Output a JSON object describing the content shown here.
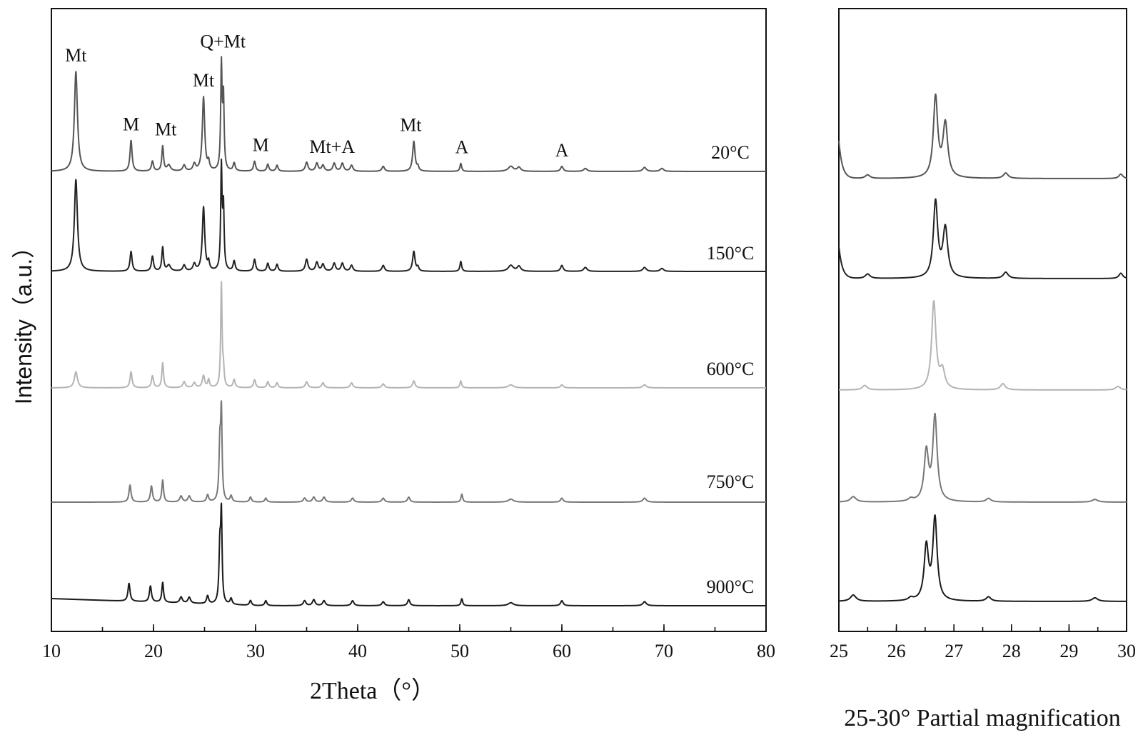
{
  "chart_data": [
    {
      "type": "line",
      "xlabel": "2Theta（°）",
      "ylabel": "Intensity（a.u.）",
      "xlim": [
        10,
        80
      ],
      "xticks": [
        10,
        20,
        30,
        40,
        50,
        60,
        70,
        80
      ],
      "x_minor_tick_step": 5,
      "y_ticks": false,
      "grid": false,
      "series": [
        {
          "label": "20°C",
          "color": "#555555",
          "peaks": [
            {
              "x": 12.4,
              "h": 1.0,
              "w": 0.18
            },
            {
              "x": 17.8,
              "h": 0.31,
              "w": 0.12
            },
            {
              "x": 19.9,
              "h": 0.1,
              "w": 0.12
            },
            {
              "x": 20.9,
              "h": 0.25,
              "w": 0.1
            },
            {
              "x": 21.5,
              "h": 0.06,
              "w": 0.2
            },
            {
              "x": 23.0,
              "h": 0.06,
              "w": 0.15
            },
            {
              "x": 24.0,
              "h": 0.07,
              "w": 0.15
            },
            {
              "x": 24.9,
              "h": 0.74,
              "w": 0.14
            },
            {
              "x": 25.4,
              "h": 0.08,
              "w": 0.1
            },
            {
              "x": 26.65,
              "h": 1.04,
              "w": 0.08
            },
            {
              "x": 26.85,
              "h": 0.72,
              "w": 0.08
            },
            {
              "x": 27.9,
              "h": 0.08,
              "w": 0.12
            },
            {
              "x": 29.9,
              "h": 0.1,
              "w": 0.12
            },
            {
              "x": 31.2,
              "h": 0.07,
              "w": 0.12
            },
            {
              "x": 32.1,
              "h": 0.06,
              "w": 0.12
            },
            {
              "x": 35.0,
              "h": 0.09,
              "w": 0.15
            },
            {
              "x": 36.0,
              "h": 0.08,
              "w": 0.15
            },
            {
              "x": 36.6,
              "h": 0.06,
              "w": 0.15
            },
            {
              "x": 37.7,
              "h": 0.08,
              "w": 0.15
            },
            {
              "x": 38.5,
              "h": 0.08,
              "w": 0.15
            },
            {
              "x": 39.4,
              "h": 0.06,
              "w": 0.15
            },
            {
              "x": 42.5,
              "h": 0.05,
              "w": 0.15
            },
            {
              "x": 45.5,
              "h": 0.3,
              "w": 0.14
            },
            {
              "x": 45.9,
              "h": 0.04,
              "w": 0.1
            },
            {
              "x": 50.1,
              "h": 0.08,
              "w": 0.1
            },
            {
              "x": 55.0,
              "h": 0.05,
              "w": 0.3
            },
            {
              "x": 55.8,
              "h": 0.04,
              "w": 0.2
            },
            {
              "x": 60.0,
              "h": 0.05,
              "w": 0.15
            },
            {
              "x": 62.3,
              "h": 0.03,
              "w": 0.2
            },
            {
              "x": 68.1,
              "h": 0.04,
              "w": 0.2
            },
            {
              "x": 69.8,
              "h": 0.03,
              "w": 0.2
            }
          ]
        },
        {
          "label": "150°C",
          "color": "#222222",
          "peaks": [
            {
              "x": 12.4,
              "h": 0.92,
              "w": 0.18
            },
            {
              "x": 17.8,
              "h": 0.2,
              "w": 0.12
            },
            {
              "x": 19.9,
              "h": 0.15,
              "w": 0.12
            },
            {
              "x": 20.9,
              "h": 0.24,
              "w": 0.1
            },
            {
              "x": 21.5,
              "h": 0.06,
              "w": 0.2
            },
            {
              "x": 23.0,
              "h": 0.06,
              "w": 0.15
            },
            {
              "x": 24.0,
              "h": 0.07,
              "w": 0.15
            },
            {
              "x": 24.9,
              "h": 0.64,
              "w": 0.14
            },
            {
              "x": 25.4,
              "h": 0.08,
              "w": 0.1
            },
            {
              "x": 26.65,
              "h": 1.03,
              "w": 0.08
            },
            {
              "x": 26.85,
              "h": 0.62,
              "w": 0.08
            },
            {
              "x": 27.9,
              "h": 0.1,
              "w": 0.12
            },
            {
              "x": 29.9,
              "h": 0.12,
              "w": 0.12
            },
            {
              "x": 31.2,
              "h": 0.08,
              "w": 0.12
            },
            {
              "x": 32.1,
              "h": 0.07,
              "w": 0.12
            },
            {
              "x": 35.0,
              "h": 0.12,
              "w": 0.15
            },
            {
              "x": 36.0,
              "h": 0.09,
              "w": 0.15
            },
            {
              "x": 36.6,
              "h": 0.07,
              "w": 0.15
            },
            {
              "x": 37.7,
              "h": 0.08,
              "w": 0.15
            },
            {
              "x": 38.5,
              "h": 0.08,
              "w": 0.15
            },
            {
              "x": 39.4,
              "h": 0.06,
              "w": 0.15
            },
            {
              "x": 42.5,
              "h": 0.06,
              "w": 0.15
            },
            {
              "x": 45.5,
              "h": 0.2,
              "w": 0.14
            },
            {
              "x": 45.9,
              "h": 0.04,
              "w": 0.1
            },
            {
              "x": 50.1,
              "h": 0.1,
              "w": 0.1
            },
            {
              "x": 55.0,
              "h": 0.06,
              "w": 0.3
            },
            {
              "x": 55.8,
              "h": 0.05,
              "w": 0.2
            },
            {
              "x": 60.0,
              "h": 0.06,
              "w": 0.15
            },
            {
              "x": 62.3,
              "h": 0.04,
              "w": 0.2
            },
            {
              "x": 68.1,
              "h": 0.04,
              "w": 0.2
            },
            {
              "x": 69.8,
              "h": 0.03,
              "w": 0.2
            }
          ]
        },
        {
          "label": "600°C",
          "color": "#b4b4b4",
          "peaks": [
            {
              "x": 12.4,
              "h": 0.16,
              "w": 0.18
            },
            {
              "x": 17.8,
              "h": 0.16,
              "w": 0.12
            },
            {
              "x": 19.9,
              "h": 0.12,
              "w": 0.12
            },
            {
              "x": 20.9,
              "h": 0.25,
              "w": 0.1
            },
            {
              "x": 23.0,
              "h": 0.06,
              "w": 0.15
            },
            {
              "x": 24.0,
              "h": 0.05,
              "w": 0.15
            },
            {
              "x": 24.9,
              "h": 0.12,
              "w": 0.14
            },
            {
              "x": 25.4,
              "h": 0.08,
              "w": 0.1
            },
            {
              "x": 26.65,
              "h": 1.04,
              "w": 0.08
            },
            {
              "x": 26.85,
              "h": 0.16,
              "w": 0.08
            },
            {
              "x": 27.9,
              "h": 0.08,
              "w": 0.12
            },
            {
              "x": 29.9,
              "h": 0.08,
              "w": 0.12
            },
            {
              "x": 31.2,
              "h": 0.06,
              "w": 0.12
            },
            {
              "x": 32.1,
              "h": 0.05,
              "w": 0.12
            },
            {
              "x": 35.0,
              "h": 0.06,
              "w": 0.15
            },
            {
              "x": 36.6,
              "h": 0.05,
              "w": 0.15
            },
            {
              "x": 39.4,
              "h": 0.05,
              "w": 0.15
            },
            {
              "x": 42.5,
              "h": 0.04,
              "w": 0.15
            },
            {
              "x": 45.5,
              "h": 0.07,
              "w": 0.14
            },
            {
              "x": 50.1,
              "h": 0.07,
              "w": 0.1
            },
            {
              "x": 55.0,
              "h": 0.03,
              "w": 0.3
            },
            {
              "x": 60.0,
              "h": 0.03,
              "w": 0.15
            },
            {
              "x": 68.1,
              "h": 0.03,
              "w": 0.2
            }
          ]
        },
        {
          "label": "750°C",
          "color": "#777777",
          "peaks": [
            {
              "x": 17.7,
              "h": 0.17,
              "w": 0.12
            },
            {
              "x": 19.8,
              "h": 0.16,
              "w": 0.12
            },
            {
              "x": 20.9,
              "h": 0.22,
              "w": 0.1
            },
            {
              "x": 22.7,
              "h": 0.06,
              "w": 0.15
            },
            {
              "x": 23.5,
              "h": 0.06,
              "w": 0.15
            },
            {
              "x": 25.3,
              "h": 0.07,
              "w": 0.12
            },
            {
              "x": 26.5,
              "h": 0.55,
              "w": 0.1
            },
            {
              "x": 26.65,
              "h": 0.85,
              "w": 0.08
            },
            {
              "x": 27.6,
              "h": 0.06,
              "w": 0.12
            },
            {
              "x": 29.5,
              "h": 0.05,
              "w": 0.12
            },
            {
              "x": 31.0,
              "h": 0.04,
              "w": 0.12
            },
            {
              "x": 34.8,
              "h": 0.04,
              "w": 0.15
            },
            {
              "x": 35.7,
              "h": 0.05,
              "w": 0.15
            },
            {
              "x": 36.7,
              "h": 0.05,
              "w": 0.15
            },
            {
              "x": 39.5,
              "h": 0.04,
              "w": 0.15
            },
            {
              "x": 42.5,
              "h": 0.04,
              "w": 0.15
            },
            {
              "x": 45.0,
              "h": 0.05,
              "w": 0.14
            },
            {
              "x": 50.2,
              "h": 0.08,
              "w": 0.1
            },
            {
              "x": 55.0,
              "h": 0.03,
              "w": 0.3
            },
            {
              "x": 60.0,
              "h": 0.04,
              "w": 0.15
            },
            {
              "x": 68.1,
              "h": 0.04,
              "w": 0.2
            }
          ]
        },
        {
          "label": "900°C",
          "color": "#1a1a1a",
          "peaks": [
            {
              "x": 17.6,
              "h": 0.18,
              "w": 0.12
            },
            {
              "x": 19.7,
              "h": 0.16,
              "w": 0.12
            },
            {
              "x": 20.9,
              "h": 0.2,
              "w": 0.1
            },
            {
              "x": 22.7,
              "h": 0.06,
              "w": 0.15
            },
            {
              "x": 23.5,
              "h": 0.06,
              "w": 0.15
            },
            {
              "x": 25.3,
              "h": 0.08,
              "w": 0.12
            },
            {
              "x": 26.5,
              "h": 0.55,
              "w": 0.1
            },
            {
              "x": 26.65,
              "h": 0.85,
              "w": 0.08
            },
            {
              "x": 27.6,
              "h": 0.06,
              "w": 0.12
            },
            {
              "x": 29.5,
              "h": 0.05,
              "w": 0.12
            },
            {
              "x": 31.0,
              "h": 0.05,
              "w": 0.12
            },
            {
              "x": 34.8,
              "h": 0.05,
              "w": 0.15
            },
            {
              "x": 35.7,
              "h": 0.06,
              "w": 0.15
            },
            {
              "x": 36.7,
              "h": 0.05,
              "w": 0.15
            },
            {
              "x": 39.5,
              "h": 0.05,
              "w": 0.15
            },
            {
              "x": 42.5,
              "h": 0.04,
              "w": 0.15
            },
            {
              "x": 45.0,
              "h": 0.06,
              "w": 0.14
            },
            {
              "x": 50.2,
              "h": 0.07,
              "w": 0.1
            },
            {
              "x": 55.0,
              "h": 0.03,
              "w": 0.3
            },
            {
              "x": 60.0,
              "h": 0.05,
              "w": 0.15
            },
            {
              "x": 68.1,
              "h": 0.04,
              "w": 0.2
            }
          ]
        }
      ],
      "annotations": [
        {
          "text": "Mt",
          "x": 12.4
        },
        {
          "text": "M",
          "x": 17.8
        },
        {
          "text": "Mt",
          "x": 21.2
        },
        {
          "text": "Mt",
          "x": 24.9
        },
        {
          "text": "Q+Mt",
          "x": 26.8
        },
        {
          "text": "M",
          "x": 30.5
        },
        {
          "text": "Mt+A",
          "x": 37.5
        },
        {
          "text": "Mt",
          "x": 45.2
        },
        {
          "text": "A",
          "x": 50.2
        },
        {
          "text": "A",
          "x": 60.0
        }
      ]
    },
    {
      "type": "line",
      "xlabel": "25-30° Partial magnification",
      "xlim": [
        25,
        30
      ],
      "xticks": [
        25,
        26,
        27,
        28,
        29,
        30
      ],
      "x_minor_tick_step": 0.5,
      "y_ticks": false,
      "grid": false,
      "series": [
        {
          "label": "20°C",
          "color": "#555555",
          "edge_rise": 0.42,
          "peaks": [
            {
              "x": 25.5,
              "h": 0.04,
              "w": 0.05
            },
            {
              "x": 26.68,
              "h": 0.9,
              "w": 0.045
            },
            {
              "x": 26.85,
              "h": 0.6,
              "w": 0.05
            },
            {
              "x": 27.9,
              "h": 0.06,
              "w": 0.05
            },
            {
              "x": 29.9,
              "h": 0.05,
              "w": 0.04
            }
          ]
        },
        {
          "label": "150°C",
          "color": "#222222",
          "edge_rise": 0.36,
          "peaks": [
            {
              "x": 25.5,
              "h": 0.05,
              "w": 0.05
            },
            {
              "x": 26.68,
              "h": 0.85,
              "w": 0.045
            },
            {
              "x": 26.85,
              "h": 0.55,
              "w": 0.05
            },
            {
              "x": 27.9,
              "h": 0.07,
              "w": 0.05
            },
            {
              "x": 29.9,
              "h": 0.06,
              "w": 0.04
            }
          ]
        },
        {
          "label": "600°C",
          "color": "#b4b4b4",
          "edge_rise": 0.0,
          "peaks": [
            {
              "x": 25.45,
              "h": 0.05,
              "w": 0.05
            },
            {
              "x": 26.65,
              "h": 0.98,
              "w": 0.045
            },
            {
              "x": 26.8,
              "h": 0.2,
              "w": 0.05
            },
            {
              "x": 27.85,
              "h": 0.07,
              "w": 0.05
            },
            {
              "x": 29.85,
              "h": 0.04,
              "w": 0.05
            }
          ]
        },
        {
          "label": "750°C",
          "color": "#777777",
          "edge_rise": 0.0,
          "peaks": [
            {
              "x": 25.25,
              "h": 0.06,
              "w": 0.06
            },
            {
              "x": 26.25,
              "h": 0.03,
              "w": 0.05
            },
            {
              "x": 26.52,
              "h": 0.55,
              "w": 0.045
            },
            {
              "x": 26.67,
              "h": 0.95,
              "w": 0.045
            },
            {
              "x": 27.6,
              "h": 0.04,
              "w": 0.05
            },
            {
              "x": 29.45,
              "h": 0.03,
              "w": 0.06
            }
          ]
        },
        {
          "label": "900°C",
          "color": "#1a1a1a",
          "edge_rise": 0.0,
          "peaks": [
            {
              "x": 25.25,
              "h": 0.07,
              "w": 0.06
            },
            {
              "x": 26.25,
              "h": 0.03,
              "w": 0.05
            },
            {
              "x": 26.52,
              "h": 0.6,
              "w": 0.045
            },
            {
              "x": 26.67,
              "h": 0.92,
              "w": 0.045
            },
            {
              "x": 27.6,
              "h": 0.05,
              "w": 0.05
            },
            {
              "x": 29.45,
              "h": 0.04,
              "w": 0.06
            }
          ]
        }
      ]
    }
  ]
}
